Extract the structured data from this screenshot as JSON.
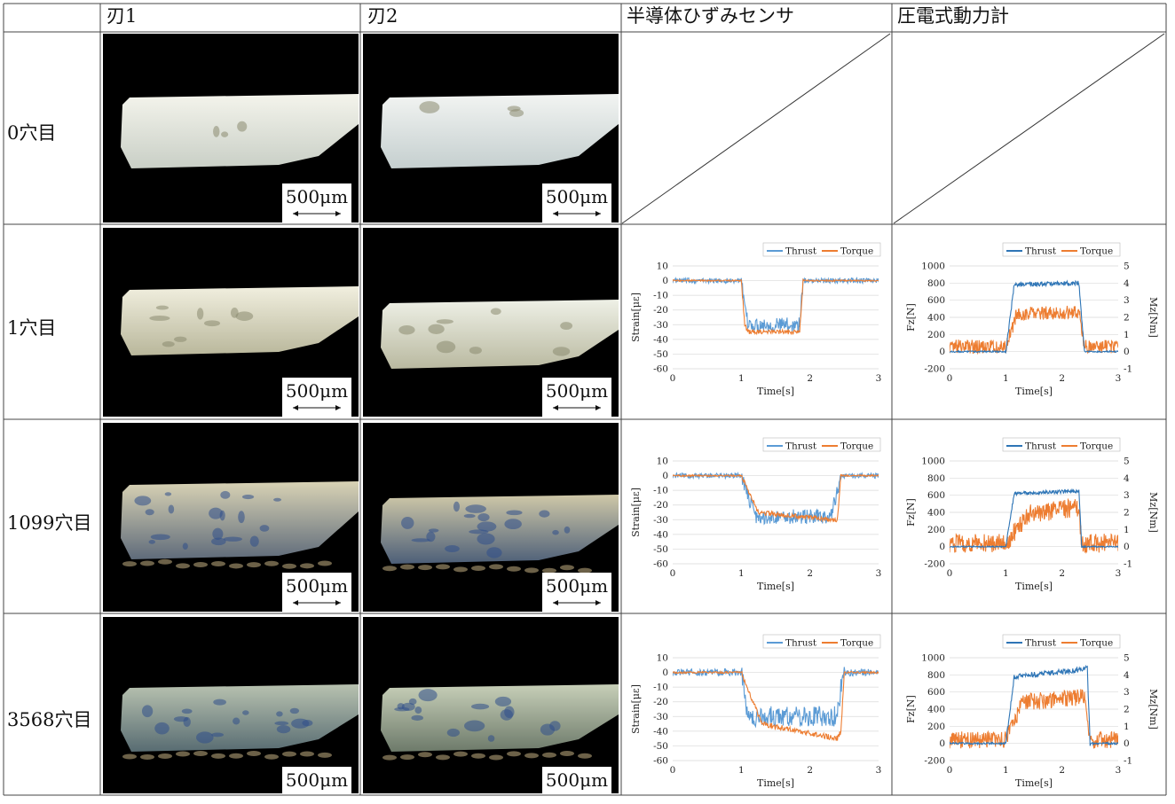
{
  "headers": {
    "blade1": "刃1",
    "blade2": "刃2",
    "semi": "半導体ひずみセンサ",
    "piezo": "圧電式動力計"
  },
  "rows": [
    {
      "label": "0穴目"
    },
    {
      "label": "1穴目"
    },
    {
      "label": "1099穴目"
    },
    {
      "label": "3568穴目"
    }
  ],
  "scale_label": "500μm",
  "colors": {
    "thrust": "#5b9bd5",
    "torque": "#ed7d31",
    "thrust_dark": "#2e75b6"
  },
  "chart_data": [
    {
      "id": "strain-1",
      "type": "line",
      "xlabel": "Time[s]",
      "ylabel": "Strain[με]",
      "xlim": [
        0,
        3
      ],
      "ylim": [
        -60,
        10
      ],
      "xticks": [
        0,
        1,
        2,
        3
      ],
      "yticks": [
        10,
        0,
        -10,
        -20,
        -30,
        -40,
        -50,
        -60
      ],
      "legend": "top-right",
      "series": [
        {
          "name": "Thrust",
          "x": [
            0,
            1.0,
            1.05,
            1.1,
            1.85,
            1.9,
            3
          ],
          "y": [
            0,
            0,
            -20,
            -30,
            -30,
            0,
            0
          ],
          "noise": 5
        },
        {
          "name": "Torque",
          "x": [
            0,
            1.0,
            1.05,
            1.1,
            1.85,
            1.9,
            3
          ],
          "y": [
            0,
            0,
            -30,
            -35,
            -35,
            0,
            0
          ],
          "noise": 1.5
        }
      ]
    },
    {
      "id": "strain-2",
      "type": "line",
      "xlabel": "Time[s]",
      "ylabel": "Strain[με]",
      "xlim": [
        0,
        3
      ],
      "ylim": [
        -60,
        10
      ],
      "xticks": [
        0,
        1,
        2,
        3
      ],
      "yticks": [
        10,
        0,
        -10,
        -20,
        -30,
        -40,
        -50,
        -60
      ],
      "legend": "top-right",
      "series": [
        {
          "name": "Thrust",
          "x": [
            0,
            1.0,
            1.2,
            2.3,
            2.4,
            2.45,
            3
          ],
          "y": [
            0,
            0,
            -28,
            -28,
            -10,
            0,
            0
          ],
          "noise": 5
        },
        {
          "name": "Torque",
          "x": [
            0,
            1.0,
            1.25,
            2.3,
            2.4,
            2.45,
            3
          ],
          "y": [
            0,
            0,
            -25,
            -30,
            -30,
            0,
            0
          ],
          "noise": 1.5
        }
      ]
    },
    {
      "id": "strain-3",
      "type": "line",
      "xlabel": "Time[s]",
      "ylabel": "Strain[με]",
      "xlim": [
        0,
        3
      ],
      "ylim": [
        -60,
        10
      ],
      "xticks": [
        0,
        1,
        2,
        3
      ],
      "yticks": [
        10,
        0,
        -10,
        -20,
        -30,
        -40,
        -50,
        -60
      ],
      "legend": "top-right",
      "series": [
        {
          "name": "Thrust",
          "x": [
            0,
            1.0,
            1.1,
            2.4,
            2.45,
            2.5,
            3
          ],
          "y": [
            0,
            0,
            -30,
            -30,
            -10,
            0,
            0
          ],
          "noise": 7
        },
        {
          "name": "Torque",
          "x": [
            0,
            1.0,
            1.3,
            2.4,
            2.45,
            2.5,
            3
          ],
          "y": [
            0,
            0,
            -35,
            -45,
            -40,
            0,
            0
          ],
          "noise": 1.8
        }
      ]
    },
    {
      "id": "force-1",
      "type": "line",
      "xlabel": "Time[s]",
      "ylabel": "Fz[N]",
      "y2label": "Mz[Nm]",
      "xlim": [
        0,
        3
      ],
      "ylim": [
        -200,
        1000
      ],
      "y2lim": [
        -1,
        5
      ],
      "xticks": [
        0,
        1,
        2,
        3
      ],
      "yticks": [
        1000,
        800,
        600,
        400,
        200,
        0,
        -200
      ],
      "y2ticks": [
        5,
        4,
        3,
        2,
        1,
        0,
        -1
      ],
      "legend": "top-right",
      "series": [
        {
          "name": "Thrust",
          "x": [
            0,
            1.0,
            1.15,
            2.3,
            2.4,
            3
          ],
          "y": [
            0,
            0,
            780,
            800,
            0,
            0
          ],
          "noise": 25
        },
        {
          "name": "Torque",
          "x": [
            0,
            1.0,
            1.2,
            2.3,
            2.4,
            3
          ],
          "y": [
            0.3,
            0.3,
            2.2,
            2.3,
            0.3,
            0.3
          ],
          "noise": 0.4,
          "axis": "y2"
        }
      ]
    },
    {
      "id": "force-2",
      "type": "line",
      "xlabel": "Time[s]",
      "ylabel": "Fz[N]",
      "y2label": "Mz[Nm]",
      "xlim": [
        0,
        3
      ],
      "ylim": [
        -200,
        1000
      ],
      "y2lim": [
        -1,
        5
      ],
      "xticks": [
        0,
        1,
        2,
        3
      ],
      "yticks": [
        1000,
        800,
        600,
        400,
        200,
        0,
        -200
      ],
      "y2ticks": [
        5,
        4,
        3,
        2,
        1,
        0,
        -1
      ],
      "legend": "top-right",
      "series": [
        {
          "name": "Thrust",
          "x": [
            0,
            1.0,
            1.15,
            2.3,
            2.35,
            3
          ],
          "y": [
            0,
            0,
            620,
            650,
            0,
            0
          ],
          "noise": 20
        },
        {
          "name": "Torque",
          "x": [
            0,
            1.0,
            1.4,
            2.3,
            2.35,
            3
          ],
          "y": [
            0.2,
            0.2,
            1.9,
            2.3,
            0.2,
            0.2
          ],
          "noise": 0.55,
          "axis": "y2"
        }
      ]
    },
    {
      "id": "force-3",
      "type": "line",
      "xlabel": "Time[s]",
      "ylabel": "Fz[N]",
      "y2label": "Mz[Nm]",
      "xlim": [
        0,
        3
      ],
      "ylim": [
        -200,
        1000
      ],
      "y2lim": [
        -1,
        5
      ],
      "xticks": [
        0,
        1,
        2,
        3
      ],
      "yticks": [
        1000,
        800,
        600,
        400,
        200,
        0,
        -200
      ],
      "y2ticks": [
        5,
        4,
        3,
        2,
        1,
        0,
        -1
      ],
      "legend": "top-right",
      "series": [
        {
          "name": "Thrust",
          "x": [
            0,
            1.0,
            1.15,
            2.3,
            2.45,
            2.5,
            3
          ],
          "y": [
            0,
            0,
            780,
            860,
            880,
            0,
            0
          ],
          "noise": 30
        },
        {
          "name": "Torque",
          "x": [
            0,
            1.0,
            1.3,
            2.4,
            2.5,
            3
          ],
          "y": [
            0.2,
            0.2,
            2.4,
            2.7,
            0.2,
            0.2
          ],
          "noise": 0.5,
          "axis": "y2"
        }
      ]
    }
  ]
}
